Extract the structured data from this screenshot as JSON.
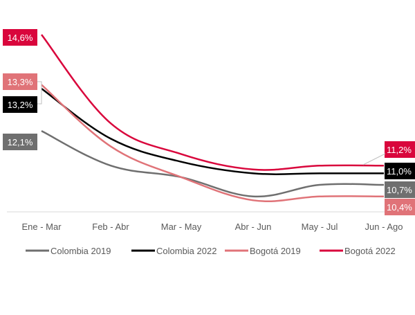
{
  "chart_data": {
    "type": "line",
    "smooth": true,
    "categories": [
      "Ene - Mar",
      "Feb - Abr",
      "Mar - May",
      "Abr - Jun",
      "May - Jul",
      "Jun - Ago"
    ],
    "ylim": [
      10.0,
      15.5
    ],
    "grid": false,
    "legend_position": "bottom",
    "series": [
      {
        "name": "Colombia 2019",
        "color": "#6f6f6f",
        "values": [
          12.1,
          11.2,
          10.9,
          10.4,
          10.7,
          10.7
        ],
        "start_label": "12,1%",
        "end_label": "10,7%"
      },
      {
        "name": "Colombia 2022",
        "color": "#000000",
        "values": [
          13.2,
          11.9,
          11.3,
          11.0,
          11.0,
          11.0
        ],
        "start_label": "13,2%",
        "end_label": "11,0%"
      },
      {
        "name": "Bogotá 2019",
        "color": "#e07378",
        "values": [
          13.3,
          11.7,
          10.9,
          10.3,
          10.4,
          10.4
        ],
        "start_label": "13,3%",
        "end_label": "10,4%"
      },
      {
        "name": "Bogotá 2022",
        "color": "#d9063c",
        "values": [
          14.6,
          12.3,
          11.5,
          11.1,
          11.2,
          11.2
        ],
        "start_label": "14,6%",
        "end_label": "11,2%"
      }
    ]
  }
}
